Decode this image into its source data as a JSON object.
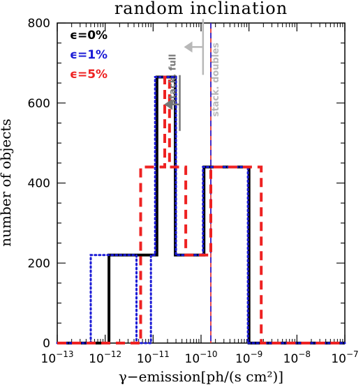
{
  "chart_data": {
    "type": "histogram",
    "title": "random inclination",
    "xlabel": "γ−emission[ph/(s cm²)]",
    "ylabel": "number of objects",
    "xscale": "log",
    "xlim": [
      1e-13,
      1e-07
    ],
    "ylim": [
      0,
      800
    ],
    "x_ticks": [
      {
        "value": 1e-13,
        "mant": "10",
        "exp": "−13"
      },
      {
        "value": 1e-12,
        "mant": "10",
        "exp": "−12"
      },
      {
        "value": 1e-11,
        "mant": "10",
        "exp": "−11"
      },
      {
        "value": 1e-10,
        "mant": "10",
        "exp": "−10"
      },
      {
        "value": 1e-09,
        "mant": "10",
        "exp": "−9"
      },
      {
        "value": 1e-08,
        "mant": "10",
        "exp": "−8"
      },
      {
        "value": 1e-07,
        "mant": "10",
        "exp": "−7"
      }
    ],
    "y_ticks": [
      {
        "value": 0,
        "label": "0"
      },
      {
        "value": 200,
        "label": "200"
      },
      {
        "value": 400,
        "label": "400"
      },
      {
        "value": 600,
        "label": "600"
      },
      {
        "value": 800,
        "label": "800"
      }
    ],
    "series": [
      {
        "name": "ϵ=0%",
        "color": "#000000",
        "style": "solid",
        "steps": [
          [
            1e-13,
            0
          ],
          [
            1.2e-12,
            0
          ],
          [
            1.2e-12,
            220
          ],
          [
            1.2e-11,
            220
          ],
          [
            1.2e-11,
            665
          ],
          [
            2.9e-11,
            665
          ],
          [
            2.9e-11,
            220
          ],
          [
            1.15e-10,
            220
          ],
          [
            1.15e-10,
            440
          ],
          [
            1e-09,
            440
          ],
          [
            1e-09,
            0
          ],
          [
            1e-07,
            0
          ]
        ]
      },
      {
        "name": "ϵ=1%",
        "color": "#1a1ad6",
        "style": "dotted",
        "steps": [
          [
            1e-13,
            0
          ],
          [
            5e-13,
            0
          ],
          [
            5e-13,
            220
          ],
          [
            4.5e-12,
            220
          ],
          [
            4.5e-12,
            0
          ],
          [
            9e-12,
            0
          ],
          [
            9e-12,
            220
          ],
          [
            1.1e-11,
            220
          ],
          [
            1.1e-11,
            665
          ],
          [
            3e-11,
            665
          ],
          [
            3e-11,
            220
          ],
          [
            1.1e-10,
            220
          ],
          [
            1.1e-10,
            440
          ],
          [
            9.5e-10,
            440
          ],
          [
            9.5e-10,
            0
          ],
          [
            1e-07,
            0
          ]
        ]
      },
      {
        "name": "ϵ=5%",
        "color": "#ee2222",
        "style": "dashed",
        "steps": [
          [
            1e-13,
            0
          ],
          [
            5.5e-12,
            0
          ],
          [
            5.5e-12,
            440
          ],
          [
            1.75e-11,
            440
          ],
          [
            1.75e-11,
            665
          ],
          [
            2.2e-11,
            665
          ],
          [
            2.2e-11,
            440
          ],
          [
            4.8e-11,
            440
          ],
          [
            4.8e-11,
            220
          ],
          [
            1.6e-10,
            220
          ],
          [
            1.6e-10,
            440
          ],
          [
            1.8e-09,
            440
          ],
          [
            1.8e-09,
            0
          ],
          [
            1e-07,
            0
          ]
        ]
      }
    ],
    "reference_lines": [
      {
        "x": 1.6e-10,
        "color": "#e02020",
        "style": "solid"
      },
      {
        "x": 1.6e-10,
        "color": "#1a1ad6",
        "style": "dashed"
      }
    ],
    "annotations": [
      {
        "text": "stack. full",
        "x": 3.6e-11,
        "y": 600,
        "color": "#777777",
        "arrow_to": 1.7e-11
      },
      {
        "text": "stack. doubles",
        "x": 1.1e-10,
        "y": 740,
        "color": "#b8b8b8",
        "arrow_to": 4.4e-11
      }
    ]
  }
}
